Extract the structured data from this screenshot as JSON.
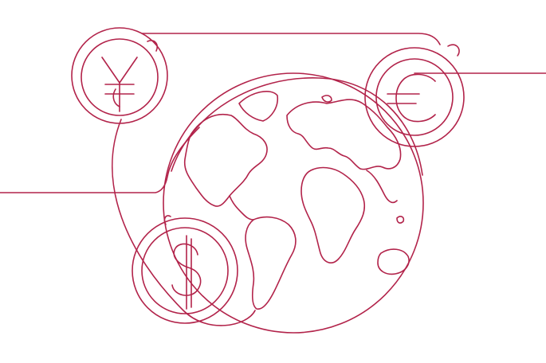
{
  "colors": {
    "background": "#ffffff",
    "line": "#b2234a"
  },
  "illustration": {
    "icons": [
      {
        "name": "globe-icon"
      },
      {
        "name": "yen-coin-icon",
        "symbol": "¥"
      },
      {
        "name": "euro-coin-icon",
        "symbol": "€"
      },
      {
        "name": "dollar-coin-icon",
        "symbol": "$"
      }
    ]
  }
}
